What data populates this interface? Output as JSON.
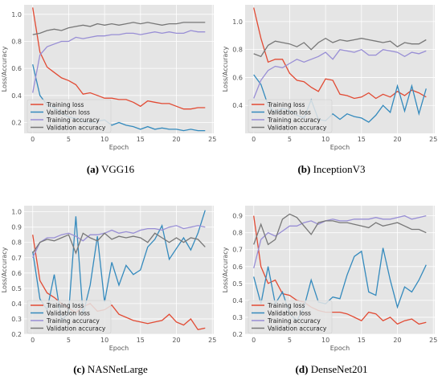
{
  "panel_labels": [
    "(a)",
    "(b)",
    "(c)",
    "(d)"
  ],
  "panel_names": [
    "VGG16",
    "InceptionV3",
    "NASNetLarge",
    "DenseNet201"
  ],
  "colors": {
    "training_loss": "#e24a33",
    "validation_loss": "#348abd",
    "training_accuracy": "#988ed5",
    "validation_accuracy": "#777777",
    "plot_bg": "#e5e5e5",
    "grid": "#ffffff"
  },
  "chart_data": [
    {
      "type": "line",
      "title": "",
      "xlabel": "Epoch",
      "ylabel": "Loss/Accuracy",
      "xlim": [
        -1.2,
        25.2
      ],
      "ylim": [
        0.12,
        1.07
      ],
      "xticks": [
        0,
        5,
        10,
        15,
        20,
        25
      ],
      "yticks": [
        0.2,
        0.4,
        0.6,
        0.8,
        1.0
      ],
      "ytick_labels": [
        "0.2",
        "0.4",
        "0.6",
        "0.8",
        "1.0"
      ],
      "grid": true,
      "legend": "lower-left",
      "x": [
        0,
        1,
        2,
        3,
        4,
        5,
        6,
        7,
        8,
        9,
        10,
        11,
        12,
        13,
        14,
        15,
        16,
        17,
        18,
        19,
        20,
        21,
        22,
        23,
        24
      ],
      "series": [
        {
          "name": "Training loss",
          "color_key": "training_loss",
          "values": [
            1.05,
            0.72,
            0.61,
            0.57,
            0.53,
            0.51,
            0.48,
            0.41,
            0.42,
            0.4,
            0.38,
            0.38,
            0.37,
            0.37,
            0.35,
            0.32,
            0.36,
            0.35,
            0.34,
            0.34,
            0.32,
            0.3,
            0.3,
            0.31,
            0.31
          ]
        },
        {
          "name": "Validation loss",
          "color_key": "validation_loss",
          "values": [
            0.63,
            0.4,
            0.33,
            0.31,
            0.27,
            0.24,
            0.23,
            0.21,
            0.2,
            0.21,
            0.22,
            0.18,
            0.2,
            0.18,
            0.17,
            0.15,
            0.17,
            0.15,
            0.16,
            0.15,
            0.15,
            0.14,
            0.15,
            0.14,
            0.14
          ]
        },
        {
          "name": "Training accuracy",
          "color_key": "training_accuracy",
          "values": [
            0.42,
            0.7,
            0.76,
            0.78,
            0.8,
            0.8,
            0.83,
            0.82,
            0.83,
            0.84,
            0.84,
            0.85,
            0.85,
            0.86,
            0.86,
            0.85,
            0.86,
            0.87,
            0.86,
            0.87,
            0.86,
            0.86,
            0.88,
            0.87,
            0.87
          ]
        },
        {
          "name": "Validation accuracy",
          "color_key": "validation_accuracy",
          "values": [
            0.85,
            0.86,
            0.88,
            0.89,
            0.88,
            0.9,
            0.91,
            0.92,
            0.91,
            0.93,
            0.92,
            0.93,
            0.92,
            0.93,
            0.94,
            0.93,
            0.94,
            0.93,
            0.92,
            0.93,
            0.93,
            0.94,
            0.94,
            0.94,
            0.94
          ]
        }
      ]
    },
    {
      "type": "line",
      "title": "",
      "xlabel": "Epoch",
      "ylabel": "Loss/Accuracy",
      "xlim": [
        -1.2,
        25.2
      ],
      "ylim": [
        0.2,
        1.12
      ],
      "xticks": [
        0,
        5,
        10,
        15,
        20,
        25
      ],
      "yticks": [
        0.4,
        0.6,
        0.8,
        1.0
      ],
      "ytick_labels": [
        "0.4",
        "0.6",
        "0.8",
        "1.0"
      ],
      "grid": true,
      "legend": "lower-left",
      "x": [
        0,
        1,
        2,
        3,
        4,
        5,
        6,
        7,
        8,
        9,
        10,
        11,
        12,
        13,
        14,
        15,
        16,
        17,
        18,
        19,
        20,
        21,
        22,
        23,
        24
      ],
      "series": [
        {
          "name": "Training loss",
          "color_key": "training_loss",
          "values": [
            1.1,
            0.88,
            0.71,
            0.73,
            0.73,
            0.63,
            0.58,
            0.57,
            0.53,
            0.5,
            0.59,
            0.58,
            0.48,
            0.47,
            0.45,
            0.46,
            0.49,
            0.45,
            0.48,
            0.46,
            0.5,
            0.47,
            0.51,
            0.49,
            0.46
          ]
        },
        {
          "name": "Validation loss",
          "color_key": "validation_loss",
          "values": [
            0.62,
            0.55,
            0.4,
            0.35,
            0.38,
            0.36,
            0.33,
            0.31,
            0.44,
            0.3,
            0.29,
            0.34,
            0.3,
            0.34,
            0.32,
            0.31,
            0.28,
            0.33,
            0.4,
            0.35,
            0.54,
            0.36,
            0.54,
            0.34,
            0.52
          ]
        },
        {
          "name": "Training accuracy",
          "color_key": "training_accuracy",
          "values": [
            0.45,
            0.58,
            0.65,
            0.68,
            0.67,
            0.7,
            0.73,
            0.71,
            0.73,
            0.75,
            0.78,
            0.73,
            0.8,
            0.79,
            0.78,
            0.8,
            0.76,
            0.76,
            0.8,
            0.79,
            0.78,
            0.75,
            0.78,
            0.77,
            0.79
          ]
        },
        {
          "name": "Validation accuracy",
          "color_key": "validation_accuracy",
          "values": [
            0.77,
            0.75,
            0.83,
            0.86,
            0.85,
            0.84,
            0.82,
            0.85,
            0.8,
            0.85,
            0.88,
            0.85,
            0.87,
            0.86,
            0.87,
            0.88,
            0.87,
            0.86,
            0.85,
            0.86,
            0.82,
            0.85,
            0.84,
            0.84,
            0.87
          ]
        }
      ]
    },
    {
      "type": "line",
      "title": "",
      "xlabel": "Epoch",
      "ylabel": "Loss/Accuracy",
      "xlim": [
        -1.2,
        25.2
      ],
      "ylim": [
        0.2,
        1.04
      ],
      "xticks": [
        0,
        5,
        10,
        15,
        20,
        25
      ],
      "yticks": [
        0.2,
        0.3,
        0.4,
        0.5,
        0.6,
        0.7,
        0.8,
        0.9,
        1.0
      ],
      "ytick_labels": [
        "0.2",
        "0.3",
        "0.4",
        "0.5",
        "0.6",
        "0.7",
        "0.8",
        "0.9",
        "1.0"
      ],
      "grid": true,
      "legend": "lower-left",
      "x": [
        0,
        1,
        2,
        3,
        4,
        5,
        6,
        7,
        8,
        9,
        10,
        11,
        12,
        13,
        14,
        15,
        16,
        17,
        18,
        19,
        20,
        21,
        22,
        23,
        24
      ],
      "series": [
        {
          "name": "Training loss",
          "color_key": "training_loss",
          "values": [
            0.85,
            0.55,
            0.47,
            0.44,
            0.4,
            0.37,
            0.34,
            0.38,
            0.4,
            0.35,
            0.36,
            0.39,
            0.33,
            0.31,
            0.29,
            0.28,
            0.27,
            0.28,
            0.29,
            0.33,
            0.28,
            0.26,
            0.3,
            0.23,
            0.24
          ]
        },
        {
          "name": "Validation loss",
          "color_key": "validation_loss",
          "values": [
            0.74,
            0.43,
            0.36,
            0.59,
            0.29,
            0.34,
            0.97,
            0.33,
            0.52,
            0.84,
            0.41,
            0.67,
            0.52,
            0.65,
            0.59,
            0.62,
            0.77,
            0.82,
            0.91,
            0.69,
            0.76,
            0.83,
            0.75,
            0.86,
            1.01
          ]
        },
        {
          "name": "Training accuracy",
          "color_key": "training_accuracy",
          "values": [
            0.7,
            0.8,
            0.83,
            0.83,
            0.85,
            0.86,
            0.84,
            0.81,
            0.85,
            0.85,
            0.86,
            0.88,
            0.86,
            0.87,
            0.86,
            0.88,
            0.89,
            0.89,
            0.88,
            0.9,
            0.91,
            0.89,
            0.9,
            0.91,
            0.9
          ]
        },
        {
          "name": "Validation accuracy",
          "color_key": "validation_accuracy",
          "values": [
            0.73,
            0.8,
            0.82,
            0.81,
            0.83,
            0.85,
            0.73,
            0.86,
            0.83,
            0.81,
            0.86,
            0.82,
            0.84,
            0.83,
            0.84,
            0.83,
            0.8,
            0.86,
            0.83,
            0.8,
            0.83,
            0.8,
            0.83,
            0.82,
            0.77
          ]
        }
      ]
    },
    {
      "type": "line",
      "title": "",
      "xlabel": "Epoch",
      "ylabel": "Loss/Accuracy",
      "xlim": [
        -1.2,
        25.2
      ],
      "ylim": [
        0.2,
        0.96
      ],
      "xticks": [
        0,
        5,
        10,
        15,
        20,
        25
      ],
      "yticks": [
        0.2,
        0.3,
        0.4,
        0.5,
        0.6,
        0.7,
        0.8,
        0.9
      ],
      "ytick_labels": [
        "0.2",
        "0.3",
        "0.4",
        "0.5",
        "0.6",
        "0.7",
        "0.8",
        "0.9"
      ],
      "grid": true,
      "legend": "lower-left",
      "x": [
        0,
        1,
        2,
        3,
        4,
        5,
        6,
        7,
        8,
        9,
        10,
        11,
        12,
        13,
        14,
        15,
        16,
        17,
        18,
        19,
        20,
        21,
        22,
        23,
        24
      ],
      "series": [
        {
          "name": "Training loss",
          "color_key": "training_loss",
          "values": [
            0.9,
            0.6,
            0.5,
            0.52,
            0.44,
            0.43,
            0.4,
            0.39,
            0.36,
            0.34,
            0.33,
            0.33,
            0.33,
            0.32,
            0.3,
            0.28,
            0.33,
            0.32,
            0.28,
            0.3,
            0.26,
            0.28,
            0.29,
            0.26,
            0.27
          ]
        },
        {
          "name": "Validation loss",
          "color_key": "validation_loss",
          "values": [
            0.54,
            0.38,
            0.6,
            0.38,
            0.45,
            0.32,
            0.28,
            0.36,
            0.52,
            0.39,
            0.38,
            0.42,
            0.41,
            0.55,
            0.66,
            0.69,
            0.45,
            0.43,
            0.71,
            0.52,
            0.36,
            0.48,
            0.45,
            0.52,
            0.61
          ]
        },
        {
          "name": "Training accuracy",
          "color_key": "training_accuracy",
          "values": [
            0.59,
            0.76,
            0.8,
            0.78,
            0.81,
            0.84,
            0.84,
            0.86,
            0.87,
            0.85,
            0.87,
            0.88,
            0.87,
            0.87,
            0.88,
            0.88,
            0.88,
            0.89,
            0.88,
            0.88,
            0.89,
            0.9,
            0.88,
            0.89,
            0.9
          ]
        },
        {
          "name": "Validation accuracy",
          "color_key": "validation_accuracy",
          "values": [
            0.73,
            0.85,
            0.73,
            0.76,
            0.88,
            0.91,
            0.89,
            0.84,
            0.79,
            0.86,
            0.87,
            0.87,
            0.86,
            0.86,
            0.85,
            0.84,
            0.83,
            0.86,
            0.84,
            0.85,
            0.86,
            0.84,
            0.82,
            0.82,
            0.8
          ]
        }
      ]
    }
  ]
}
